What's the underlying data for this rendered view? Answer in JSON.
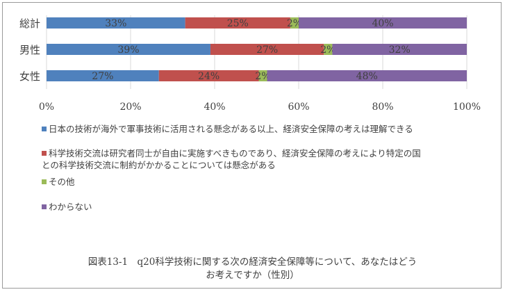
{
  "chart_data": {
    "type": "bar",
    "orientation": "horizontal",
    "stacked": "percent",
    "categories": [
      "総計",
      "男性",
      "女性"
    ],
    "series": [
      {
        "name": "日本の技術が海外で軍事技術に活用される懸念がある以上、経済安全保障の考えは理解できる",
        "color": "#4f81bd",
        "values": [
          33,
          39,
          27
        ]
      },
      {
        "name": "科学技術交流は研究者同士が自由に実施すべきものであり、経済安全保障の考えにより特定の国との科学技術交流に制約がかかることについては懸念がある",
        "color": "#c0504d",
        "values": [
          25,
          27,
          24
        ]
      },
      {
        "name": "その他",
        "color": "#9bbb59",
        "values": [
          2,
          2,
          2
        ]
      },
      {
        "name": "わからない",
        "color": "#8064a2",
        "values": [
          40,
          32,
          48
        ]
      }
    ],
    "data_labels": [
      [
        "33%",
        "25%",
        "2%",
        "40%"
      ],
      [
        "39%",
        "27%",
        "2%",
        "32%"
      ],
      [
        "27%",
        "24%",
        "2%",
        "48%"
      ]
    ],
    "xlim": [
      0,
      100
    ],
    "x_ticks": [
      "0%",
      "20%",
      "40%",
      "60%",
      "80%",
      "100%"
    ],
    "grid": true,
    "legend_position": "bottom"
  },
  "legend": [
    {
      "color": "#4f81bd",
      "line1": "日本の技術が海外で軍事技術に活用される懸念がある以上、経済安全保障の考えは理解できる",
      "line2": ""
    },
    {
      "color": "#c0504d",
      "line1": "科学技術交流は研究者同士が自由に実施すべきものであり、経済安全保障の考えにより特定の国",
      "line2": "との科学技術交流に制約がかかることについては懸念がある"
    },
    {
      "color": "#9bbb59",
      "line1": "その他",
      "line2": ""
    },
    {
      "color": "#8064a2",
      "line1": "わからない",
      "line2": ""
    }
  ],
  "caption": {
    "line1": "図表13-1　q20科学技術に関する次の経済安全保障等について、あなたはどう",
    "line2": "お考えですか（性別）"
  }
}
